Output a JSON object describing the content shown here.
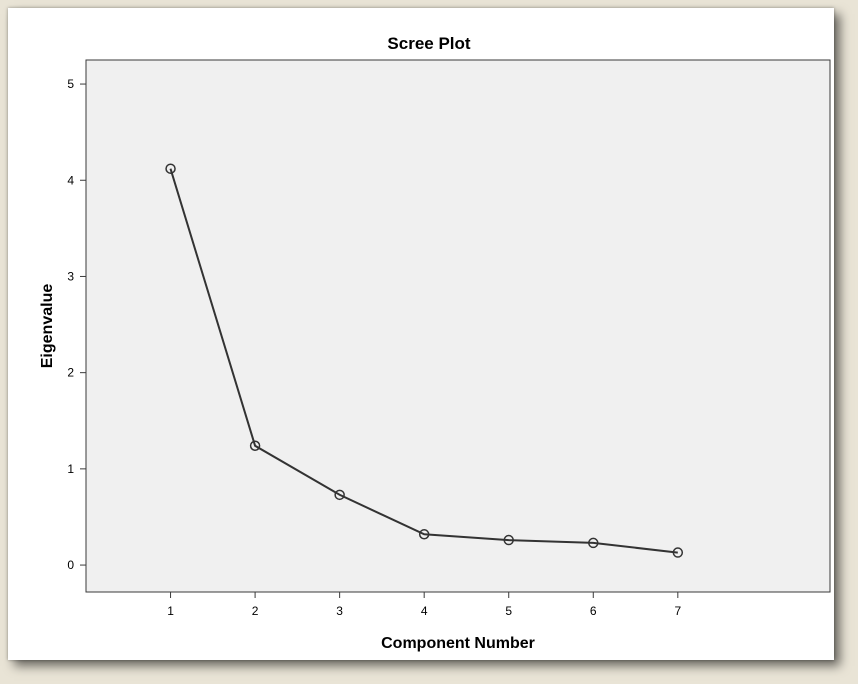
{
  "chart_data": {
    "type": "line",
    "title": "Scree Plot",
    "xlabel": "Component Number",
    "ylabel": "Eigenvalue",
    "x": [
      1,
      2,
      3,
      4,
      5,
      6,
      7
    ],
    "series": [
      {
        "values": [
          4.12,
          1.24,
          0.73,
          0.32,
          0.26,
          0.23,
          0.13
        ]
      }
    ],
    "xticks": [
      "1",
      "2",
      "3",
      "4",
      "5",
      "6",
      "7"
    ],
    "yticks": [
      "0",
      "1",
      "2",
      "3",
      "4",
      "5"
    ],
    "xlim": [
      0,
      8.8
    ],
    "ylim": [
      -0.28,
      5.25
    ],
    "grid": false,
    "marker": "open-circle",
    "colors": {
      "line": "#333333",
      "plot_bg": "#f0f0f0",
      "frame_bg": "#e9e4d6"
    }
  }
}
